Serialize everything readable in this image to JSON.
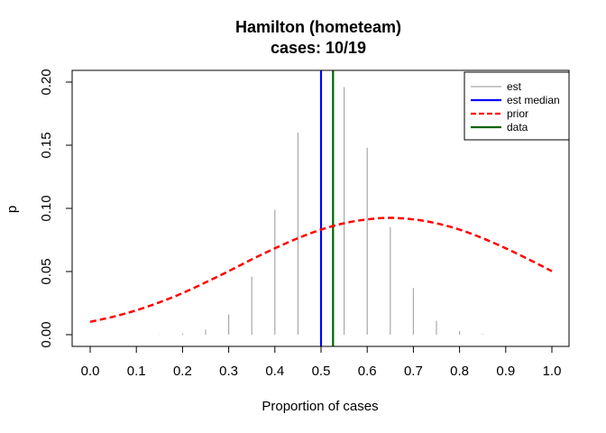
{
  "chart_data": {
    "type": "bar",
    "title_line1": "Hamilton (hometeam)",
    "title_line2": "cases: 10/19",
    "xlabel": "Proportion of cases",
    "ylabel": "p",
    "xlim": [
      0.0,
      1.0
    ],
    "ylim": [
      0.0,
      0.2
    ],
    "x_ticks": [
      "0.0",
      "0.1",
      "0.2",
      "0.3",
      "0.4",
      "0.5",
      "0.6",
      "0.7",
      "0.8",
      "0.9",
      "1.0"
    ],
    "y_ticks": [
      "0.00",
      "0.05",
      "0.10",
      "0.15",
      "0.20"
    ],
    "legend_position": "top-right",
    "legend": [
      {
        "label": "est",
        "color": "#A9A9A9",
        "style": "solid"
      },
      {
        "label": "est median",
        "color": "#0000FF",
        "style": "solid"
      },
      {
        "label": "prior",
        "color": "#FF0000",
        "style": "dashed"
      },
      {
        "label": "data",
        "color": "#006400",
        "style": "solid"
      }
    ],
    "est": {
      "x": [
        0.0,
        0.05,
        0.1,
        0.15,
        0.2,
        0.25,
        0.3,
        0.35,
        0.4,
        0.45,
        0.5,
        0.55,
        0.6,
        0.65,
        0.7,
        0.75,
        0.8,
        0.85,
        0.9,
        0.95,
        1.0
      ],
      "values": [
        0.0,
        0.0,
        0.0,
        0.0002,
        0.001,
        0.004,
        0.016,
        0.046,
        0.099,
        0.16,
        0.0,
        0.196,
        0.148,
        0.085,
        0.037,
        0.011,
        0.003,
        0.0005,
        0.0001,
        0.0,
        0.0
      ],
      "color": "#A9A9A9"
    },
    "est_median": {
      "x": 0.5,
      "color": "#0000FF"
    },
    "data_line": {
      "x": 0.526,
      "color": "#006400"
    },
    "prior": {
      "x": [
        0.0,
        0.05,
        0.1,
        0.15,
        0.2,
        0.25,
        0.3,
        0.35,
        0.4,
        0.45,
        0.5,
        0.55,
        0.6,
        0.65,
        0.7,
        0.75,
        0.8,
        0.85,
        0.9,
        0.95,
        1.0
      ],
      "values": [
        0.0102,
        0.0142,
        0.0193,
        0.0256,
        0.0329,
        0.0414,
        0.0503,
        0.0596,
        0.0684,
        0.0764,
        0.0832,
        0.0882,
        0.0913,
        0.0925,
        0.0913,
        0.0882,
        0.0832,
        0.0764,
        0.0684,
        0.0596,
        0.0503
      ],
      "color": "#FF0000"
    }
  }
}
